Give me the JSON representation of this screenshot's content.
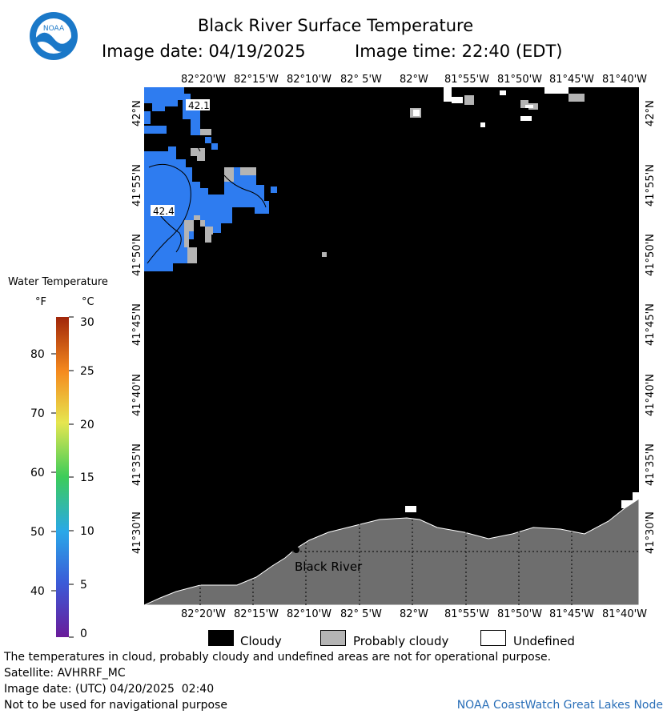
{
  "header": {
    "title": "Black River Surface Temperature",
    "image_date_label": "Image date: 04/19/2025",
    "image_time_label": "Image time: 22:40 (EDT)",
    "logo_text": "NOAA"
  },
  "map": {
    "lon_labels": [
      "82°20'W",
      "82°15'W",
      "82°10'W",
      "82° 5'W",
      "82°W",
      "81°55'W",
      "81°50'W",
      "81°45'W",
      "81°40'W"
    ],
    "lat_labels": [
      "42°N",
      "41°55'N",
      "41°50'N",
      "41°45'N",
      "41°40'N",
      "41°35'N",
      "41°30'N"
    ],
    "contour_labels": [
      "42.1",
      "42.4"
    ],
    "place_label": "Black River",
    "colors": {
      "cloud": "#000000",
      "probably_cloudy": "#b4b4b4",
      "land": "#6e6e6e",
      "water_42": "#2e7cf0",
      "undefined": "#ffffff"
    }
  },
  "colorbar": {
    "title": "Water Temperature",
    "unit_f": "°F",
    "unit_c": "°C",
    "f_ticks": [
      "80",
      "70",
      "60",
      "50",
      "40"
    ],
    "c_ticks": [
      "30",
      "25",
      "20",
      "15",
      "10",
      "5",
      "0"
    ]
  },
  "legend": {
    "cloudy": "Cloudy",
    "probably_cloudy": "Probably cloudy",
    "undefined": "Undefined"
  },
  "footer": {
    "disclaimer": "The temperatures in cloud, probably cloudy and undefined areas are not for operational purpose.",
    "satellite": "Satellite: AVHRRF_MC",
    "utc_date": "Image date: (UTC) 04/20/2025  02:40",
    "nav_warning": "Not to be used for navigational purpose",
    "credit": "NOAA CoastWatch Great Lakes Node"
  }
}
